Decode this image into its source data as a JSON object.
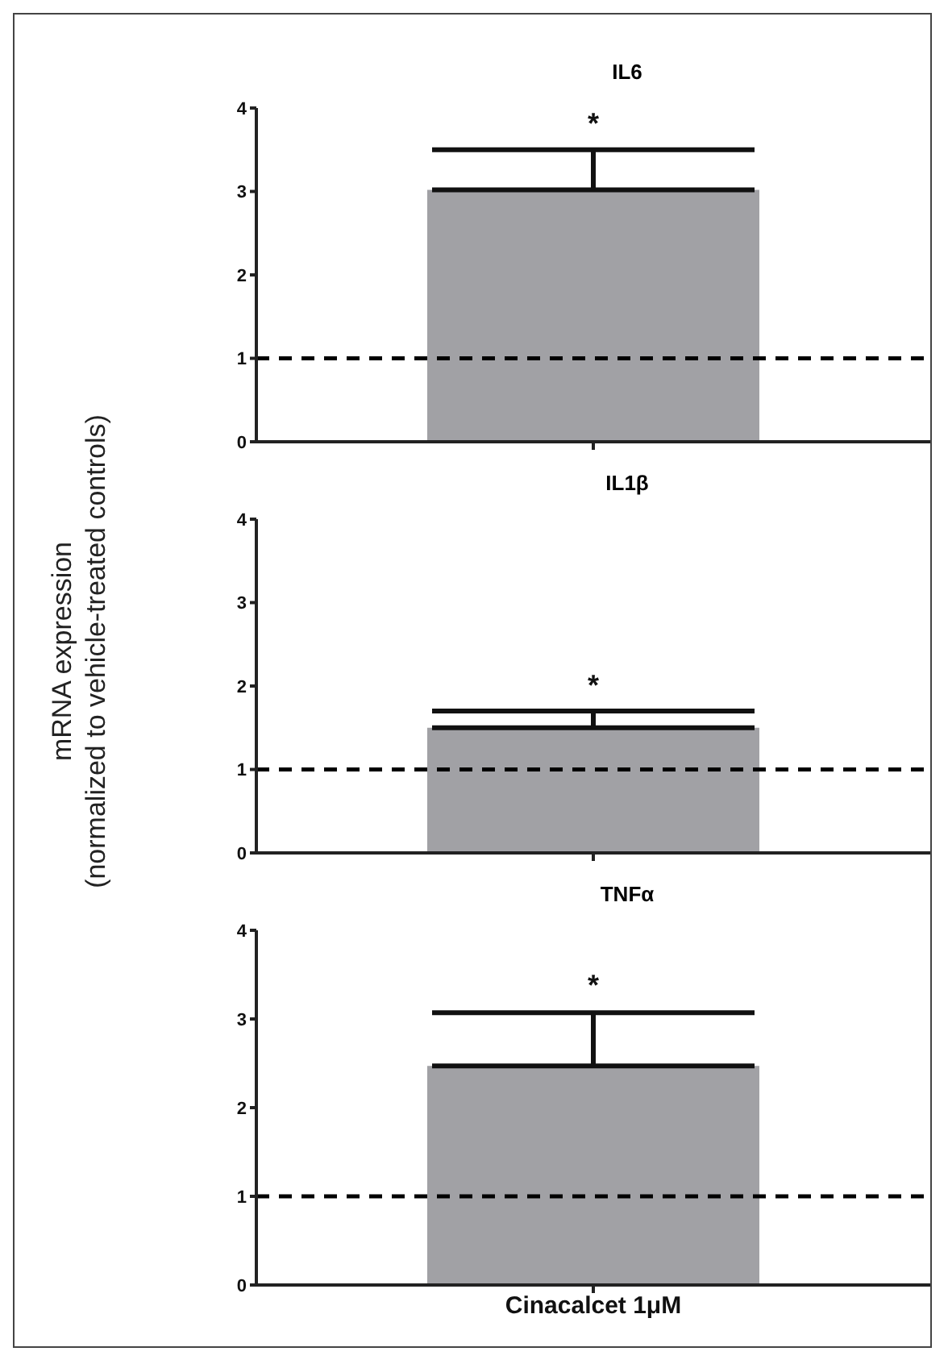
{
  "chart_data": [
    {
      "type": "bar",
      "title": "IL6",
      "categories": [
        null
      ],
      "values": [
        3.02
      ],
      "color": "#a1a1a5",
      "errors": [
        [
          3.02,
          3.5
        ]
      ],
      "ylim": [
        0,
        4
      ],
      "yticks": [
        0,
        1,
        2,
        3,
        4
      ],
      "ref_lines": [
        {
          "axis": "y",
          "value": 1,
          "line_style": "dashed",
          "color": "#000000"
        }
      ],
      "annotations": [
        "*"
      ],
      "tick_labels": "y"
    },
    {
      "type": "bar",
      "title": "IL1β",
      "ylabel": "mRNA expression\n(normalized to vehicle-treated controls)",
      "categories": [
        null
      ],
      "values": [
        1.5
      ],
      "color": "#a1a1a5",
      "errors": [
        [
          1.5,
          1.7
        ]
      ],
      "ylim": [
        0,
        4
      ],
      "yticks": [
        0,
        1,
        2,
        3,
        4
      ],
      "ref_lines": [
        {
          "axis": "y",
          "value": 1,
          "line_style": "dashed",
          "color": "#000000"
        }
      ],
      "annotations": [
        "*"
      ],
      "tick_labels": "y"
    },
    {
      "type": "bar",
      "title": "TNFα",
      "categories": [
        "Cinacalcet 1μM"
      ],
      "values": [
        2.47
      ],
      "color": "#a1a1a5",
      "errors": [
        [
          2.47,
          3.07
        ]
      ],
      "ylim": [
        0,
        4
      ],
      "yticks": [
        0,
        1,
        2,
        3,
        4
      ],
      "ref_lines": [
        {
          "axis": "y",
          "value": 1,
          "line_style": "dashed",
          "color": "#000000"
        }
      ],
      "annotations": [
        "*"
      ]
    }
  ]
}
